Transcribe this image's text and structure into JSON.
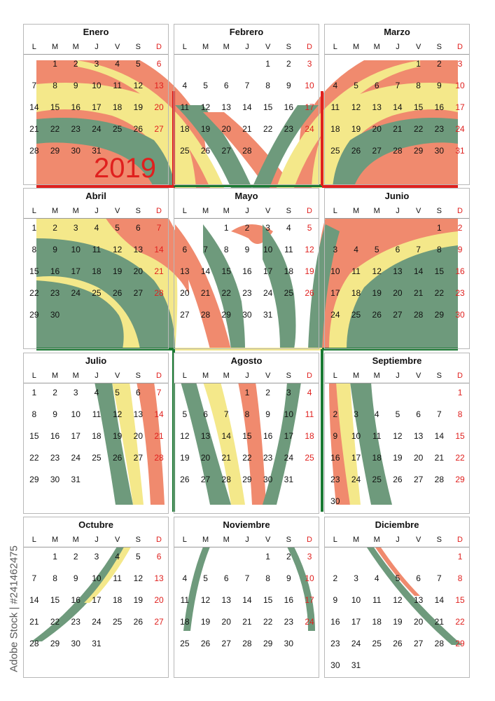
{
  "year": "2019",
  "watermark": "Adobe Stock | #241462475",
  "weekdays": [
    "L",
    "M",
    "M",
    "J",
    "V",
    "S",
    "D"
  ],
  "colors": {
    "green": "#6e9a7c",
    "salmon": "#f08a6e",
    "yellow": "#f4e88a",
    "red": "#e0201e",
    "dark_green": "#1a7a33"
  },
  "months": [
    {
      "name": "Enero",
      "start": 1,
      "days": 31
    },
    {
      "name": "Febrero",
      "start": 4,
      "days": 28
    },
    {
      "name": "Marzo",
      "start": 4,
      "days": 31
    },
    {
      "name": "Abril",
      "start": 0,
      "days": 30
    },
    {
      "name": "Mayo",
      "start": 2,
      "days": 31
    },
    {
      "name": "Junio",
      "start": 5,
      "days": 30
    },
    {
      "name": "Julio",
      "start": 0,
      "days": 31
    },
    {
      "name": "Agosto",
      "start": 3,
      "days": 31
    },
    {
      "name": "Septiembre",
      "start": 6,
      "days": 30
    },
    {
      "name": "Octubre",
      "start": 1,
      "days": 31
    },
    {
      "name": "Noviembre",
      "start": 4,
      "days": 30
    },
    {
      "name": "Diciembre",
      "start": 6,
      "days": 31
    }
  ]
}
